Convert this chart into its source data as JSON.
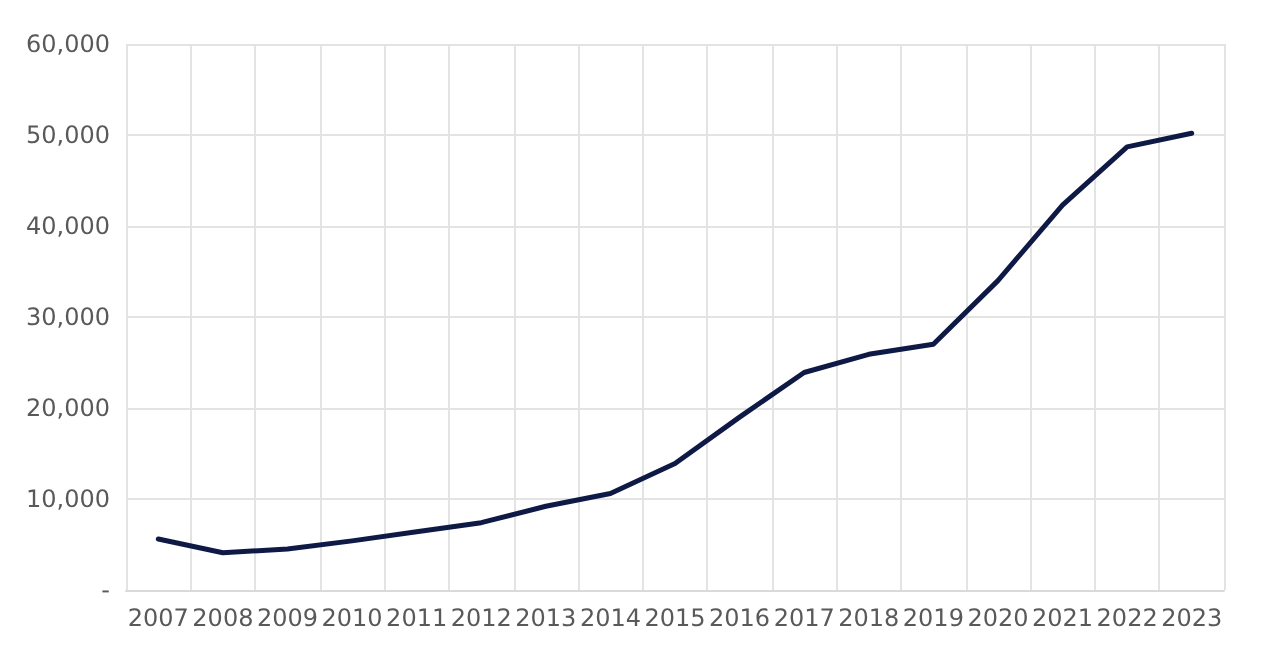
{
  "chart_data": {
    "type": "line",
    "categories": [
      "2007",
      "2008",
      "2009",
      "2010",
      "2011",
      "2012",
      "2013",
      "2014",
      "2015",
      "2016",
      "2017",
      "2018",
      "2019",
      "2020",
      "2021",
      "2022",
      "2023"
    ],
    "values": [
      5600,
      4100,
      4500,
      5400,
      6400,
      7400,
      9200,
      10600,
      13900,
      19000,
      23900,
      25900,
      27000,
      34000,
      42300,
      48700,
      50200
    ],
    "color": "#0e1a45",
    "ylim": [
      0,
      60000
    ],
    "yticks": [
      {
        "value": 0,
        "label": "-"
      },
      {
        "value": 10000,
        "label": "10,000"
      },
      {
        "value": 20000,
        "label": "20,000"
      },
      {
        "value": 30000,
        "label": "30,000"
      },
      {
        "value": 40000,
        "label": "40,000"
      },
      {
        "value": 50000,
        "label": "50,000"
      },
      {
        "value": 60000,
        "label": "60,000"
      }
    ],
    "grid": true,
    "marker": "none",
    "line_style": "solid"
  }
}
